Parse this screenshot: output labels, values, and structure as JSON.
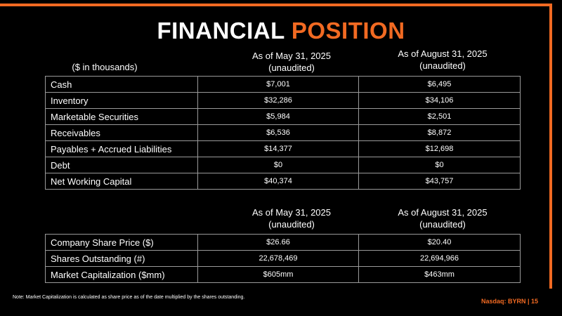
{
  "title": {
    "part1": "FINANCIAL ",
    "part2": "POSITION"
  },
  "accent_color": "#f26a22",
  "units_label": "($ in thousands)",
  "balance_sheet": {
    "col1_head": "As of May 31, 2025",
    "col1_sub": "(unaudited)",
    "col2_head": "As of August 31, 2025",
    "col2_sub": "(unaudited)",
    "rows": [
      {
        "label": "Cash",
        "may": "$7,001",
        "aug": "$6,495"
      },
      {
        "label": "Inventory",
        "may": "$32,286",
        "aug": "$34,106"
      },
      {
        "label": "Marketable Securities",
        "may": "$5,984",
        "aug": "$2,501"
      },
      {
        "label": "Receivables",
        "may": "$6,536",
        "aug": "$8,872"
      },
      {
        "label": "Payables + Accrued Liabilities",
        "may": "$14,377",
        "aug": "$12,698"
      },
      {
        "label": "Debt",
        "may": "$0",
        "aug": "$0"
      },
      {
        "label": "Net Working Capital",
        "may": "$40,374",
        "aug": "$43,757"
      }
    ]
  },
  "market": {
    "col1_head": "As of May 31, 2025",
    "col1_sub": "(unaudited)",
    "col2_head": "As of August 31, 2025",
    "col2_sub": "(unaudited)",
    "rows": [
      {
        "label": "Company Share Price ($)",
        "may": "$26.66",
        "aug": "$20.40"
      },
      {
        "label": "Shares Outstanding (#)",
        "may": "22,678,469",
        "aug": "22,694,966"
      },
      {
        "label": "Market Capitalization ($mm)",
        "may": "$605mm",
        "aug": "$463mm"
      }
    ]
  },
  "note": "Note: Market Capitalization is calculated as share price as of the date multiplied by the shares outstanding.",
  "footer": "Nasdaq: BYRN | 15"
}
